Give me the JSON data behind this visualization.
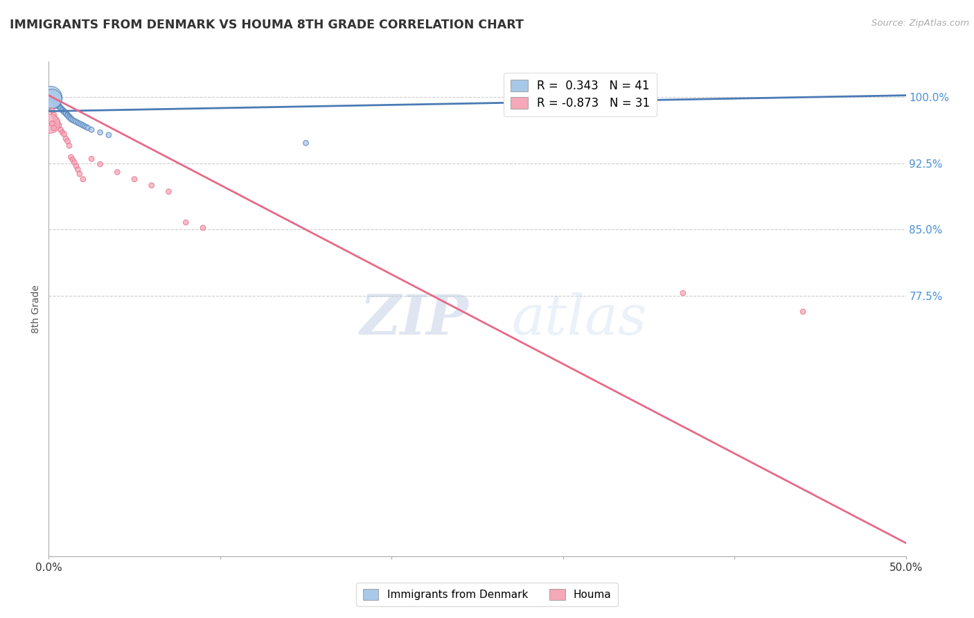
{
  "title": "IMMIGRANTS FROM DENMARK VS HOUMA 8TH GRADE CORRELATION CHART",
  "source": "Source: ZipAtlas.com",
  "ylabel": "8th Grade",
  "ytick_labels": [
    "100.0%",
    "92.5%",
    "85.0%",
    "77.5%"
  ],
  "ytick_values": [
    1.0,
    0.925,
    0.85,
    0.775
  ],
  "xlim": [
    0.0,
    0.5
  ],
  "ylim": [
    0.48,
    1.04
  ],
  "legend1_label": "R =  0.343   N = 41",
  "legend2_label": "R = -0.873   N = 31",
  "legend1_color": "#a8c8e8",
  "legend2_color": "#f4a8b8",
  "line1_color": "#4a7ab5",
  "line2_color": "#e86888",
  "watermark_zip": "ZIP",
  "watermark_atlas": "atlas",
  "blue_scatter_x": [
    0.001,
    0.002,
    0.003,
    0.003,
    0.004,
    0.004,
    0.005,
    0.005,
    0.006,
    0.006,
    0.007,
    0.007,
    0.008,
    0.008,
    0.009,
    0.009,
    0.01,
    0.01,
    0.011,
    0.011,
    0.012,
    0.012,
    0.013,
    0.013,
    0.014,
    0.015,
    0.016,
    0.017,
    0.018,
    0.019,
    0.02,
    0.021,
    0.022,
    0.023,
    0.025,
    0.03,
    0.035,
    0.15,
    0.001,
    0.002,
    0.35
  ],
  "blue_scatter_y": [
    0.998,
    0.997,
    0.996,
    0.995,
    0.994,
    0.993,
    0.992,
    0.991,
    0.99,
    0.989,
    0.988,
    0.987,
    0.986,
    0.985,
    0.984,
    0.983,
    0.982,
    0.981,
    0.98,
    0.979,
    0.978,
    0.977,
    0.976,
    0.975,
    0.974,
    0.973,
    0.972,
    0.971,
    0.97,
    0.969,
    0.968,
    0.967,
    0.966,
    0.965,
    0.963,
    0.96,
    0.957,
    0.948,
    0.999,
    0.998,
    1.0
  ],
  "blue_scatter_sizes": [
    30,
    30,
    30,
    30,
    30,
    30,
    30,
    30,
    30,
    30,
    30,
    30,
    30,
    30,
    30,
    30,
    30,
    30,
    30,
    30,
    30,
    30,
    30,
    30,
    30,
    30,
    30,
    30,
    30,
    30,
    30,
    30,
    30,
    30,
    30,
    30,
    30,
    30,
    600,
    400,
    30
  ],
  "pink_scatter_x": [
    0.002,
    0.003,
    0.004,
    0.005,
    0.006,
    0.007,
    0.008,
    0.009,
    0.01,
    0.011,
    0.012,
    0.013,
    0.014,
    0.015,
    0.016,
    0.017,
    0.018,
    0.02,
    0.025,
    0.03,
    0.04,
    0.05,
    0.06,
    0.07,
    0.001,
    0.002,
    0.003,
    0.08,
    0.09,
    0.37,
    0.44
  ],
  "pink_scatter_y": [
    0.985,
    0.98,
    0.975,
    0.972,
    0.968,
    0.963,
    0.96,
    0.958,
    0.953,
    0.95,
    0.945,
    0.932,
    0.929,
    0.926,
    0.922,
    0.918,
    0.913,
    0.907,
    0.93,
    0.924,
    0.915,
    0.907,
    0.9,
    0.893,
    0.97,
    0.97,
    0.965,
    0.858,
    0.852,
    0.778,
    0.757
  ],
  "pink_scatter_sizes": [
    30,
    30,
    30,
    30,
    30,
    30,
    30,
    30,
    30,
    30,
    30,
    30,
    30,
    30,
    30,
    30,
    30,
    30,
    30,
    30,
    30,
    30,
    30,
    30,
    400,
    30,
    30,
    30,
    30,
    30,
    30
  ],
  "blue_trendline_x": [
    0.0,
    0.5
  ],
  "blue_trendline_y": [
    0.984,
    1.002
  ],
  "pink_trendline_x": [
    0.0,
    0.5
  ],
  "pink_trendline_y": [
    1.002,
    0.495
  ]
}
